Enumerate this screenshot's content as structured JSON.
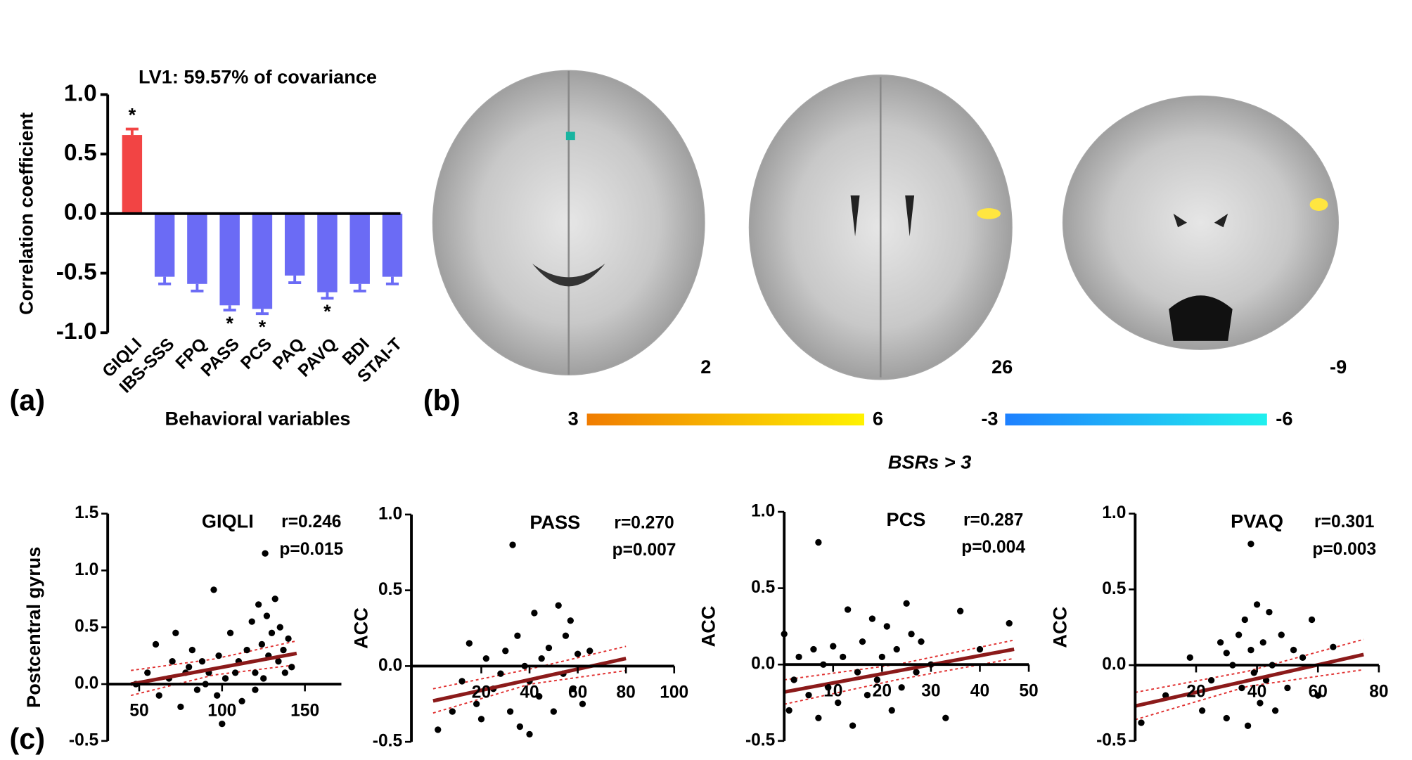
{
  "chart_data": [
    {
      "type": "bar",
      "title": "LV1: 59.57% of covariance",
      "ylabel": "Correlation coefficient",
      "xlabel": "Behavioral variables",
      "categories": [
        "GIQLI",
        "IBS-SSS",
        "FPQ",
        "PASS",
        "PCS",
        "PAQ",
        "PAVQ",
        "BDI",
        "STAI-T"
      ],
      "values": [
        0.66,
        -0.53,
        -0.59,
        -0.77,
        -0.8,
        -0.52,
        -0.66,
        -0.59,
        -0.53
      ],
      "errors": [
        0.05,
        0.06,
        0.06,
        0.04,
        0.04,
        0.06,
        0.05,
        0.06,
        0.06
      ],
      "significance": [
        "*",
        null,
        null,
        "*",
        "*",
        null,
        "*",
        null,
        null
      ],
      "colors": [
        "#f24444",
        "#6b6bf5",
        "#6b6bf5",
        "#6b6bf5",
        "#6b6bf5",
        "#6b6bf5",
        "#6b6bf5",
        "#6b6bf5",
        "#6b6bf5"
      ],
      "ylim": [
        -1,
        1
      ],
      "yticks": [
        {
          "value": 1,
          "label": "1.0"
        },
        0.5,
        {
          "value": 0,
          "label": "0.0"
        },
        -0.5,
        {
          "value": -1,
          "label": "-1.0"
        }
      ]
    },
    {
      "type": "scatter",
      "title": "GIQLI",
      "ylabel": "Postcentral gyrus",
      "annotations": [
        "r=0.246",
        "p=0.015"
      ],
      "color": "#000000",
      "x": [
        48,
        55,
        60,
        62,
        68,
        70,
        72,
        75,
        78,
        80,
        82,
        85,
        88,
        90,
        92,
        95,
        97,
        98,
        100,
        102,
        105,
        108,
        110,
        112,
        115,
        118,
        120,
        122,
        124,
        125,
        127,
        128,
        130,
        132,
        134,
        135,
        137,
        138,
        140,
        142,
        126,
        120
      ],
      "y": [
        0.0,
        0.1,
        0.35,
        -0.1,
        0.05,
        0.2,
        0.45,
        -0.2,
        0.1,
        0.15,
        0.3,
        -0.05,
        0.2,
        0.0,
        0.1,
        0.83,
        -0.1,
        0.25,
        -0.35,
        0.05,
        0.45,
        0.1,
        0.2,
        -0.15,
        0.3,
        0.55,
        0.1,
        0.7,
        0.35,
        0.05,
        0.6,
        0.25,
        0.45,
        0.75,
        0.2,
        0.5,
        0.3,
        0.1,
        0.4,
        0.15,
        1.15,
        -0.05
      ],
      "fit": {
        "x": [
          45,
          145
        ],
        "y": [
          0.0,
          0.27
        ],
        "color": "#8b1a1a"
      },
      "ci": {
        "x": [
          45,
          95,
          145
        ],
        "upper": [
          0.12,
          0.22,
          0.38
        ],
        "lower": [
          -0.1,
          0.08,
          0.17
        ],
        "color": "#e03030"
      },
      "xlim": [
        31,
        172
      ],
      "xticks": [
        50,
        100,
        150
      ],
      "ylim": [
        -0.5,
        1.5
      ],
      "yticks": [
        1.5,
        {
          "value": 1,
          "label": "1.0"
        },
        0.5,
        {
          "value": 0,
          "label": "0.0"
        },
        -0.5
      ]
    },
    {
      "type": "scatter",
      "title": "PASS",
      "ylabel": "ACC",
      "annotations": [
        "r=0.270",
        "p=0.007"
      ],
      "color": "#000000",
      "x": [
        2,
        8,
        12,
        15,
        18,
        20,
        22,
        25,
        28,
        30,
        32,
        35,
        36,
        38,
        40,
        42,
        44,
        45,
        48,
        50,
        52,
        54,
        55,
        57,
        58,
        60,
        62,
        65,
        33,
        40
      ],
      "y": [
        -0.42,
        -0.3,
        -0.1,
        0.15,
        -0.25,
        -0.35,
        0.05,
        -0.15,
        -0.05,
        0.1,
        -0.3,
        0.2,
        -0.4,
        0.0,
        -0.1,
        0.35,
        -0.2,
        0.05,
        0.12,
        -0.3,
        0.4,
        -0.05,
        0.2,
        0.3,
        -0.15,
        0.08,
        -0.25,
        0.1,
        0.8,
        -0.45
      ],
      "fit": {
        "x": [
          0,
          80
        ],
        "y": [
          -0.23,
          0.05
        ],
        "color": "#8b1a1a"
      },
      "ci": {
        "x": [
          0,
          40,
          80
        ],
        "upper": [
          -0.15,
          -0.02,
          0.13
        ],
        "lower": [
          -0.31,
          -0.12,
          -0.03
        ],
        "color": "#e03030"
      },
      "xlim": [
        -9,
        100
      ],
      "xticks": [
        20,
        40,
        60,
        80,
        100
      ],
      "ylim": [
        -0.5,
        1
      ],
      "yticks": [
        {
          "value": 1,
          "label": "1.0"
        },
        0.5,
        {
          "value": 0,
          "label": "0.0"
        },
        -0.5
      ]
    },
    {
      "type": "scatter",
      "title": "PCS",
      "ylabel": "ACC",
      "annotations": [
        "r=0.287",
        "p=0.004"
      ],
      "color": "#000000",
      "x": [
        0,
        1,
        2,
        3,
        5,
        6,
        7,
        8,
        9,
        10,
        11,
        12,
        13,
        14,
        15,
        16,
        17,
        18,
        19,
        20,
        21,
        22,
        23,
        24,
        25,
        26,
        27,
        28,
        30,
        33,
        36,
        40,
        46,
        7
      ],
      "y": [
        0.2,
        -0.3,
        -0.1,
        0.05,
        -0.2,
        0.1,
        -0.35,
        0.0,
        -0.15,
        0.12,
        -0.25,
        0.05,
        0.36,
        -0.4,
        -0.05,
        0.15,
        -0.2,
        0.3,
        -0.1,
        0.05,
        0.25,
        -0.3,
        0.1,
        -0.15,
        0.4,
        0.2,
        -0.05,
        0.15,
        0.0,
        -0.35,
        0.35,
        0.1,
        0.27,
        0.8
      ],
      "fit": {
        "x": [
          0,
          47
        ],
        "y": [
          -0.18,
          0.1
        ],
        "color": "#8b1a1a"
      },
      "ci": {
        "x": [
          0,
          23,
          47
        ],
        "upper": [
          -0.1,
          0.0,
          0.16
        ],
        "lower": [
          -0.26,
          -0.1,
          0.04
        ],
        "color": "#e03030"
      },
      "xlim": [
        0,
        50
      ],
      "xticks": [
        10,
        20,
        30,
        40,
        50
      ],
      "ylim": [
        -0.5,
        1
      ],
      "yticks": [
        {
          "value": 1,
          "label": "1.0"
        },
        0.5,
        {
          "value": 0,
          "label": "0.0"
        },
        -0.5
      ]
    },
    {
      "type": "scatter",
      "title": "PVAQ",
      "ylabel": "ACC",
      "annotations": [
        "r=0.301",
        "p=0.003"
      ],
      "color": "#000000",
      "x": [
        2,
        10,
        18,
        22,
        25,
        28,
        30,
        32,
        34,
        35,
        36,
        37,
        38,
        39,
        40,
        41,
        42,
        43,
        44,
        45,
        46,
        48,
        50,
        52,
        55,
        58,
        60,
        65,
        38,
        30
      ],
      "y": [
        -0.38,
        -0.2,
        0.05,
        -0.3,
        -0.1,
        0.15,
        -0.35,
        0.0,
        0.2,
        -0.15,
        0.3,
        -0.4,
        0.1,
        -0.05,
        0.4,
        -0.25,
        0.15,
        -0.1,
        0.35,
        0.0,
        -0.3,
        0.2,
        -0.15,
        0.1,
        0.05,
        0.3,
        -0.2,
        0.12,
        0.8,
        0.08
      ],
      "fit": {
        "x": [
          0,
          75
        ],
        "y": [
          -0.27,
          0.07
        ],
        "color": "#8b1a1a"
      },
      "ci": {
        "x": [
          0,
          37,
          75
        ],
        "upper": [
          -0.18,
          -0.04,
          0.17
        ],
        "lower": [
          -0.36,
          -0.14,
          -0.03
        ],
        "color": "#e03030"
      },
      "xlim": [
        0,
        80
      ],
      "xticks": [
        20,
        40,
        60,
        80
      ],
      "ylim": [
        -0.5,
        1
      ],
      "yticks": [
        {
          "value": 1,
          "label": "1.0"
        },
        0.5,
        {
          "value": 0,
          "label": "0.0"
        },
        -0.5
      ]
    }
  ],
  "panel_labels": [
    "(a)",
    "(b)",
    "(c)"
  ],
  "panel_b": {
    "slices": [
      "2",
      "26",
      "-9"
    ],
    "positive_scale": [
      "3",
      "6"
    ],
    "negative_scale": [
      "-3",
      "-6"
    ],
    "caption": "BSRs > 3"
  }
}
